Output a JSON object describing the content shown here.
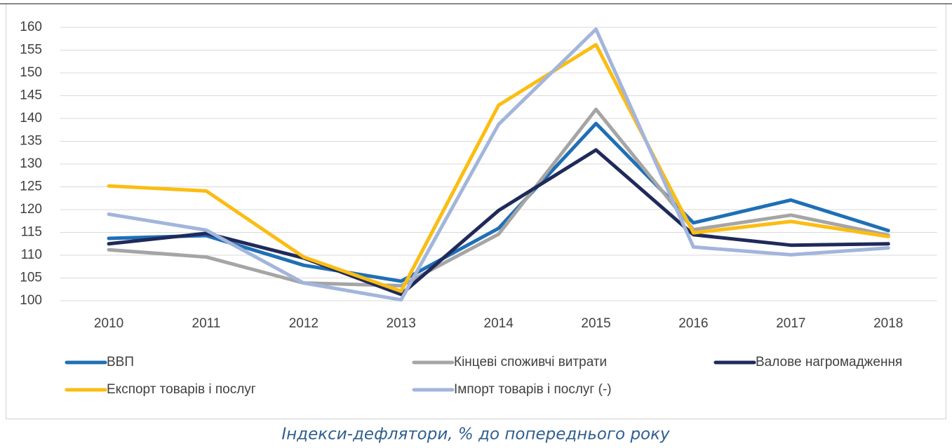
{
  "chart_data": {
    "type": "line",
    "categories": [
      "2010",
      "2011",
      "2012",
      "2013",
      "2014",
      "2015",
      "2016",
      "2017",
      "2018"
    ],
    "series": [
      {
        "name": "ВВП",
        "color": "#1f6fb5",
        "values": [
          113.7,
          114.3,
          107.8,
          104.3,
          115.9,
          138.9,
          117.1,
          122.1,
          115.4
        ]
      },
      {
        "name": "Кінцеві споживчі витрати",
        "color": "#a5a5a5",
        "values": [
          111.2,
          109.6,
          103.9,
          103.3,
          114.6,
          142.0,
          115.6,
          118.8,
          114.4
        ]
      },
      {
        "name": "Валове нагромадження",
        "color": "#1f2a5a",
        "values": [
          112.5,
          114.8,
          109.4,
          101.4,
          119.8,
          133.1,
          114.5,
          112.2,
          112.5
        ]
      },
      {
        "name": "Експорт товарів і послуг",
        "color": "#fbbd13",
        "values": [
          125.2,
          124.1,
          109.6,
          102.1,
          142.9,
          156.2,
          114.9,
          117.4,
          114.1
        ]
      },
      {
        "name": "Імпорт товарів і послуг (-)",
        "color": "#a2b5dc",
        "values": [
          119.0,
          115.5,
          103.9,
          100.2,
          138.7,
          159.6,
          111.8,
          110.1,
          111.6
        ]
      }
    ],
    "ylim": [
      100,
      160
    ],
    "yticks": [
      100,
      105,
      110,
      115,
      120,
      125,
      130,
      135,
      140,
      145,
      150,
      155,
      160
    ],
    "grid": true,
    "legend": "bottom"
  },
  "caption": "Індекси-дефлятори, % до попереднього року"
}
